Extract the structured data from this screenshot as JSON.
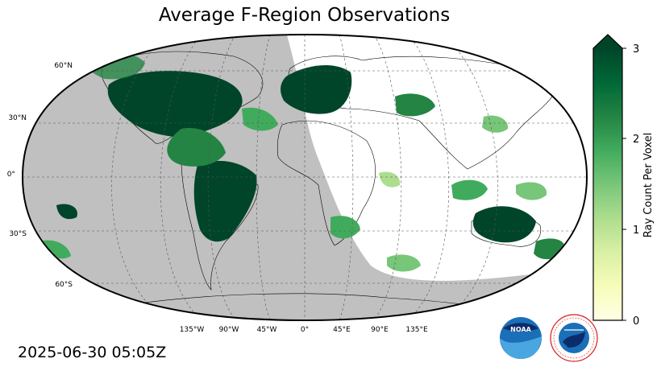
{
  "title": "Average F-Region Observations",
  "timestamp": "2025-06-30 05:05Z",
  "colorbar": {
    "label": "Ray Count Per Voxel",
    "ticks": [
      "0",
      "1",
      "2",
      "3"
    ],
    "range": [
      0,
      3
    ],
    "extend": "max",
    "colormap": "YlGn",
    "colors": [
      "#ffffe5",
      "#f7fcb9",
      "#d9f0a3",
      "#addd8e",
      "#78c679",
      "#41ab5d",
      "#238443",
      "#006837",
      "#004529"
    ]
  },
  "map": {
    "projection": "Robinson",
    "night_shade_color": "#c0c0c0",
    "lat_labels": [
      "60°N",
      "30°N",
      "0°",
      "30°S",
      "60°S"
    ],
    "lon_labels": [
      "135°W",
      "90°W",
      "45°W",
      "0°",
      "45°E",
      "90°E",
      "135°E"
    ]
  },
  "logos": [
    {
      "name": "noaa-logo",
      "text": "NOAA",
      "color": "#1a6fb8"
    },
    {
      "name": "nws-logo",
      "text": "NATIONAL WEATHER SERVICE",
      "color": "#d7191c"
    }
  ]
}
